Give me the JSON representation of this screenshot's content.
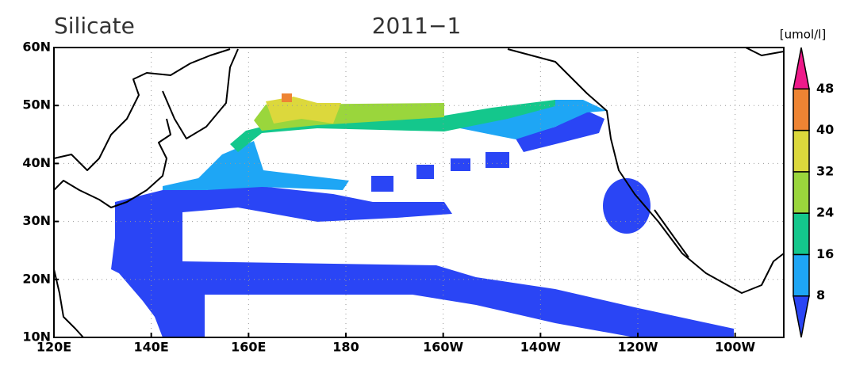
{
  "title": "Silicate",
  "date": "2011−1",
  "units": "[umol/l]",
  "map": {
    "lon_range": [
      120,
      270
    ],
    "lat_range": [
      10,
      60
    ],
    "lon_ticks": [
      {
        "value": 120,
        "label": "120E"
      },
      {
        "value": 140,
        "label": "140E"
      },
      {
        "value": 160,
        "label": "160E"
      },
      {
        "value": 180,
        "label": "180"
      },
      {
        "value": 200,
        "label": "160W"
      },
      {
        "value": 220,
        "label": "140W"
      },
      {
        "value": 240,
        "label": "120W"
      },
      {
        "value": 260,
        "label": "100W"
      }
    ],
    "lat_ticks": [
      {
        "value": 10,
        "label": "10N"
      },
      {
        "value": 20,
        "label": "20N"
      },
      {
        "value": 30,
        "label": "30N"
      },
      {
        "value": 40,
        "label": "40N"
      },
      {
        "value": 50,
        "label": "50N"
      },
      {
        "value": 60,
        "label": "60N"
      }
    ]
  },
  "colorbar": {
    "levels": [
      8,
      16,
      24,
      32,
      40,
      48
    ],
    "colors": [
      "#2a45f5",
      "#1ea6f5",
      "#14c78c",
      "#9ad63c",
      "#dcd83c",
      "#ee8433",
      "#ee1a8a"
    ]
  }
}
